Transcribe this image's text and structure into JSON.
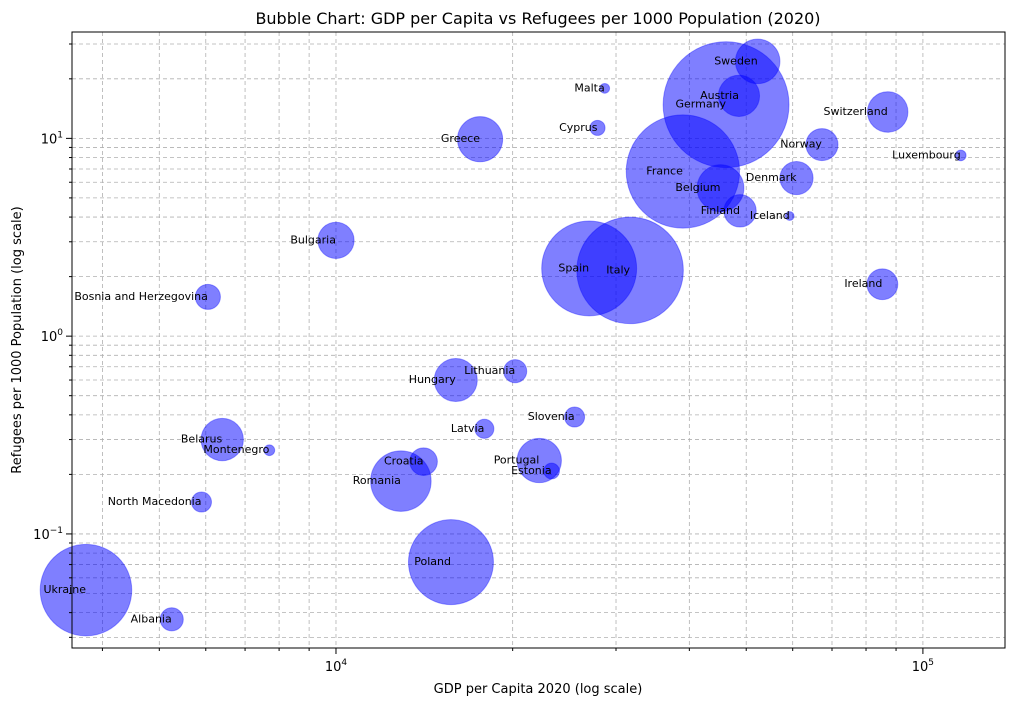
{
  "chart_data": {
    "type": "scatter",
    "title": "Bubble Chart: GDP per Capita vs Refugees per 1000 Population (2020)",
    "xlabel": "GDP per Capita 2020 (log scale)",
    "ylabel": "Refugees per 1000 Population (log scale)",
    "xscale": "log",
    "yscale": "log",
    "xlim": [
      3550,
      138000
    ],
    "ylim": [
      0.0265,
      34.5
    ],
    "xticks": [
      {
        "value": 10000,
        "base": "10",
        "exp": "4"
      },
      {
        "value": 100000,
        "base": "10",
        "exp": "5"
      }
    ],
    "yticks": [
      {
        "value": 0.1,
        "base": "10",
        "exp": "−1"
      },
      {
        "value": 1,
        "base": "10",
        "exp": "0"
      },
      {
        "value": 10,
        "base": "10",
        "exp": "1"
      }
    ],
    "grid": true,
    "bubble_color": "#0000ff",
    "bubble_opacity": 0.5,
    "size_note": "bubble area proportional to population",
    "points": [
      {
        "name": "Ukraine",
        "x": 3750,
        "y": 0.052,
        "population": 44.0
      },
      {
        "name": "Albania",
        "x": 5250,
        "y": 0.037,
        "population": 2.8
      },
      {
        "name": "North Macedonia",
        "x": 5900,
        "y": 0.145,
        "population": 2.1
      },
      {
        "name": "Bosnia and Herzegovina",
        "x": 6050,
        "y": 1.58,
        "population": 3.3
      },
      {
        "name": "Belarus",
        "x": 6400,
        "y": 0.3,
        "population": 9.4
      },
      {
        "name": "Montenegro",
        "x": 7700,
        "y": 0.265,
        "population": 0.6
      },
      {
        "name": "Bulgaria",
        "x": 10000,
        "y": 3.05,
        "population": 6.9
      },
      {
        "name": "Romania",
        "x": 12900,
        "y": 0.185,
        "population": 19.2
      },
      {
        "name": "Croatia",
        "x": 14100,
        "y": 0.232,
        "population": 4.0
      },
      {
        "name": "Hungary",
        "x": 16000,
        "y": 0.6,
        "population": 9.7
      },
      {
        "name": "Poland",
        "x": 15700,
        "y": 0.072,
        "population": 37.9
      },
      {
        "name": "Greece",
        "x": 17600,
        "y": 9.9,
        "population": 10.7
      },
      {
        "name": "Latvia",
        "x": 17900,
        "y": 0.34,
        "population": 1.9
      },
      {
        "name": "Lithuania",
        "x": 20200,
        "y": 0.665,
        "population": 2.8
      },
      {
        "name": "Portugal",
        "x": 22200,
        "y": 0.235,
        "population": 10.3
      },
      {
        "name": "Estonia",
        "x": 23300,
        "y": 0.208,
        "population": 1.3
      },
      {
        "name": "Slovenia",
        "x": 25500,
        "y": 0.39,
        "population": 2.1
      },
      {
        "name": "Spain",
        "x": 27000,
        "y": 2.2,
        "population": 47.3
      },
      {
        "name": "Cyprus",
        "x": 27900,
        "y": 11.3,
        "population": 1.2
      },
      {
        "name": "Malta",
        "x": 28700,
        "y": 17.9,
        "population": 0.5
      },
      {
        "name": "Italy",
        "x": 31700,
        "y": 2.15,
        "population": 59.6
      },
      {
        "name": "France",
        "x": 39000,
        "y": 6.8,
        "population": 67.4
      },
      {
        "name": "Belgium",
        "x": 45200,
        "y": 5.6,
        "population": 11.5
      },
      {
        "name": "Germany",
        "x": 46200,
        "y": 14.8,
        "population": 83.2
      },
      {
        "name": "Finland",
        "x": 48800,
        "y": 4.3,
        "population": 5.5
      },
      {
        "name": "Austria",
        "x": 48600,
        "y": 16.4,
        "population": 8.9
      },
      {
        "name": "Sweden",
        "x": 52300,
        "y": 24.5,
        "population": 10.4
      },
      {
        "name": "Iceland",
        "x": 59300,
        "y": 4.05,
        "population": 0.4
      },
      {
        "name": "Denmark",
        "x": 60900,
        "y": 6.3,
        "population": 5.8
      },
      {
        "name": "Norway",
        "x": 67300,
        "y": 9.3,
        "population": 5.4
      },
      {
        "name": "Ireland",
        "x": 85300,
        "y": 1.83,
        "population": 5.0
      },
      {
        "name": "Switzerland",
        "x": 87100,
        "y": 13.6,
        "population": 8.6
      },
      {
        "name": "Luxembourg",
        "x": 116000,
        "y": 8.2,
        "population": 0.6
      }
    ]
  }
}
